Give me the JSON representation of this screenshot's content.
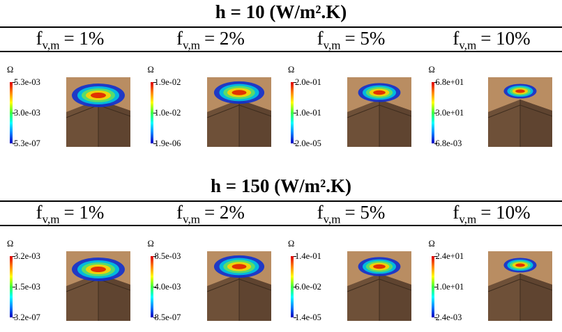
{
  "panels": [
    {
      "title": "h = 10 (W/m².K)",
      "columns": [
        {
          "symbol": "f",
          "subscript": "v,m",
          "text": "= 1%",
          "colorbar_label": "Ω",
          "colorbar_ticks": [
            "5.3e-03",
            "3.0e-03",
            "5.3e-07"
          ]
        },
        {
          "symbol": "f",
          "subscript": "v,m",
          "text": "= 2%",
          "colorbar_label": "Ω",
          "colorbar_ticks": [
            "1.9e-02",
            "1.0e-02",
            "1.9e-06"
          ]
        },
        {
          "symbol": "f",
          "subscript": "v,m",
          "text": "= 5%",
          "colorbar_label": "Ω",
          "colorbar_ticks": [
            "2.0e-01",
            "1.0e-01",
            "2.0e-05"
          ]
        },
        {
          "symbol": "f",
          "subscript": "v,m",
          "text": "= 10%",
          "colorbar_label": "Ω",
          "colorbar_ticks": [
            "6.8e+01",
            "3.0e+01",
            "6.8e-03"
          ]
        }
      ]
    },
    {
      "title": "h = 150 (W/m².K)",
      "columns": [
        {
          "symbol": "f",
          "subscript": "v,m",
          "text": "= 1%",
          "colorbar_label": "Ω",
          "colorbar_ticks": [
            "3.2e-03",
            "1.5e-03",
            "3.2e-07"
          ]
        },
        {
          "symbol": "f",
          "subscript": "v,m",
          "text": "= 2%",
          "colorbar_label": "Ω",
          "colorbar_ticks": [
            "8.5e-03",
            "4.0e-03",
            "8.5e-07"
          ]
        },
        {
          "symbol": "f",
          "subscript": "v,m",
          "text": "= 5%",
          "colorbar_label": "Ω",
          "colorbar_ticks": [
            "1.4e-01",
            "6.0e-02",
            "1.4e-05"
          ]
        },
        {
          "symbol": "f",
          "subscript": "v,m",
          "text": "= 10%",
          "colorbar_label": "Ω",
          "colorbar_ticks": [
            "2.4e+01",
            "1.0e+01",
            "2.4e-03"
          ]
        }
      ]
    }
  ]
}
